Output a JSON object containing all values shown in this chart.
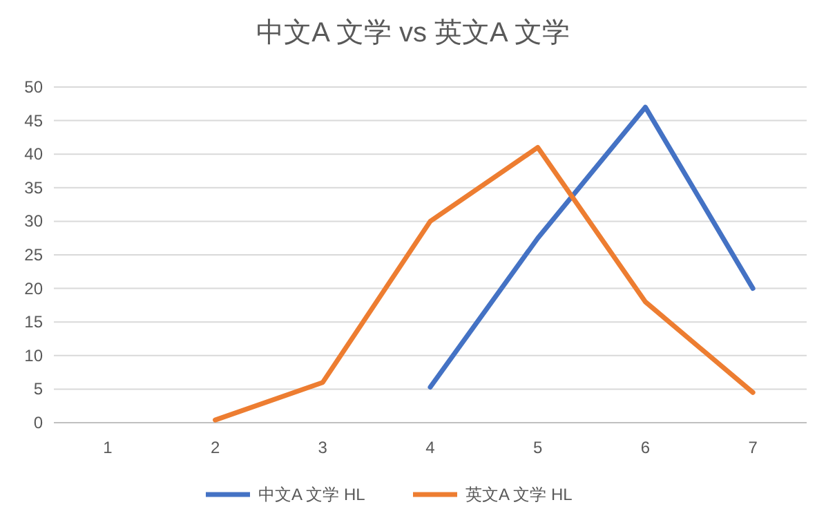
{
  "chart_data": {
    "type": "line",
    "title": "中文A  文学 vs 英文A  文学",
    "categories": [
      "1",
      "2",
      "3",
      "4",
      "5",
      "6",
      "7"
    ],
    "series": [
      {
        "name": "中文A  文学 HL",
        "color": "#4472c4",
        "values": [
          null,
          null,
          null,
          5.3,
          27.5,
          47,
          20
        ]
      },
      {
        "name": "英文A  文学 HL",
        "color": "#ed7d31",
        "values": [
          null,
          0.4,
          6,
          30,
          41,
          18,
          4.5
        ]
      }
    ],
    "ylim": [
      0,
      50
    ],
    "yticks": [
      0,
      5,
      10,
      15,
      20,
      25,
      30,
      35,
      40,
      45,
      50
    ],
    "grid": "y",
    "legend": "bottom",
    "marker": "none",
    "line_style": "solid"
  }
}
